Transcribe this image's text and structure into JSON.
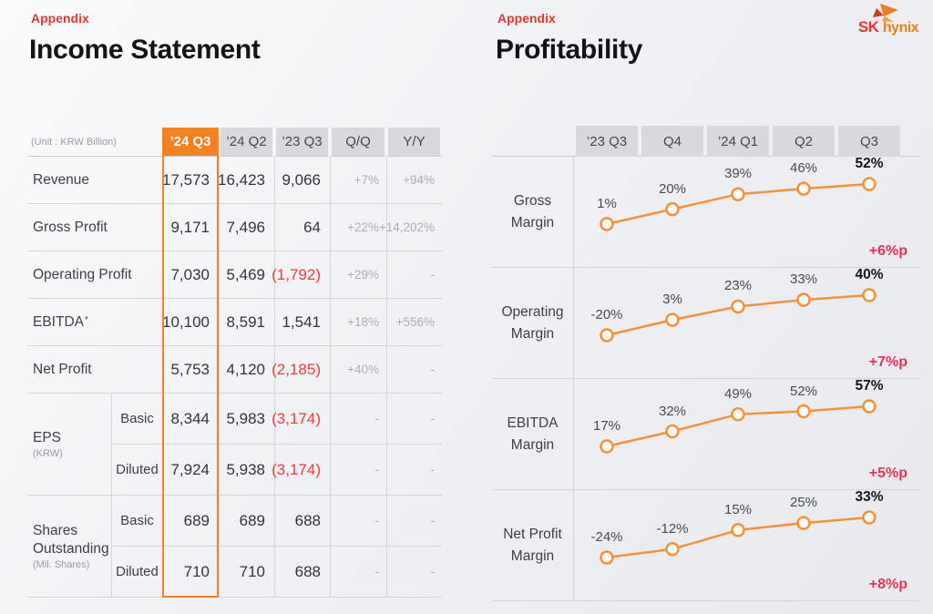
{
  "logo": {
    "sk": "SK",
    "hynix": "hynix",
    "red": "#e5352c",
    "orange": "#ef7f1d"
  },
  "left_panel": {
    "eyebrow": "Appendix",
    "title": "Income Statement",
    "table": {
      "unit_label": "(Unit : KRW Billion)",
      "highlight_color": "#f58220",
      "columns": [
        "’24 Q3",
        "’24 Q2",
        "’23 Q3",
        "Q/Q",
        "Y/Y"
      ],
      "rows": [
        {
          "label": "Revenue",
          "values": [
            "17,573",
            "16,423",
            "9,066",
            "+7%",
            "+94%"
          ]
        },
        {
          "label": "Gross Profit",
          "values": [
            "9,171",
            "7,496",
            "64",
            "+22%",
            "+14,202%"
          ]
        },
        {
          "label": "Operating Profit",
          "values": [
            "7,030",
            "5,469",
            "(1,792)",
            "+29%",
            "-"
          ]
        },
        {
          "label": "EBITDA",
          "footnote": "*",
          "values": [
            "10,100",
            "8,591",
            "1,541",
            "+18%",
            "+556%"
          ]
        },
        {
          "label": "Net Profit",
          "values": [
            "5,753",
            "4,120",
            "(2,185)",
            "+40%",
            "-"
          ]
        }
      ],
      "groups": [
        {
          "label": "EPS",
          "sublabel": "(KRW)",
          "rows": [
            {
              "sub": "Basic",
              "values": [
                "8,344",
                "5,983",
                "(3,174)",
                "-",
                "-"
              ]
            },
            {
              "sub": "Diluted",
              "values": [
                "7,924",
                "5,938",
                "(3,174)",
                "-",
                "-"
              ]
            }
          ]
        },
        {
          "label": "Shares Outstanding",
          "sublabel": "(Mil. Shares)",
          "rows": [
            {
              "sub": "Basic",
              "values": [
                "689",
                "689",
                "688",
                "-",
                "-"
              ]
            },
            {
              "sub": "Diluted",
              "values": [
                "710",
                "710",
                "688",
                "-",
                "-"
              ]
            }
          ]
        }
      ]
    }
  },
  "right_panel": {
    "eyebrow": "Appendix",
    "title": "Profitability",
    "columns": [
      "’23 Q3",
      "Q4",
      "’24 Q1",
      "Q2",
      "Q3"
    ],
    "line_color": "#f5913a",
    "delta_color": "#e73359"
  },
  "chart_data": [
    {
      "type": "table",
      "title": "Income Statement",
      "unit": "KRW Billion",
      "columns": [
        "’24 Q3",
        "’24 Q2",
        "’23 Q3",
        "Q/Q",
        "Y/Y"
      ],
      "rows": [
        [
          "Revenue",
          17573,
          16423,
          9066,
          "+7%",
          "+94%"
        ],
        [
          "Gross Profit",
          9171,
          7496,
          64,
          "+22%",
          "+14,202%"
        ],
        [
          "Operating Profit",
          7030,
          5469,
          -1792,
          "+29%",
          "-"
        ],
        [
          "EBITDA",
          10100,
          8591,
          1541,
          "+18%",
          "+556%"
        ],
        [
          "Net Profit",
          5753,
          4120,
          -2185,
          "+40%",
          "-"
        ],
        [
          "EPS Basic (KRW)",
          8344,
          5983,
          -3174,
          "-",
          "-"
        ],
        [
          "EPS Diluted (KRW)",
          7924,
          5938,
          -3174,
          "-",
          "-"
        ],
        [
          "Shares Outstanding Basic (Mil. Shares)",
          689,
          689,
          688,
          "-",
          "-"
        ],
        [
          "Shares Outstanding Diluted (Mil. Shares)",
          710,
          710,
          688,
          "-",
          "-"
        ]
      ]
    },
    {
      "type": "line",
      "title": "Gross Margin",
      "categories": [
        "’23 Q3",
        "Q4",
        "’24 Q1",
        "Q2",
        "Q3"
      ],
      "values": [
        1,
        20,
        39,
        46,
        52
      ],
      "unit": "%",
      "delta": "+6%p"
    },
    {
      "type": "line",
      "title": "Operating Margin",
      "categories": [
        "’23 Q3",
        "Q4",
        "’24 Q1",
        "Q2",
        "Q3"
      ],
      "values": [
        -20,
        3,
        23,
        33,
        40
      ],
      "unit": "%",
      "delta": "+7%p"
    },
    {
      "type": "line",
      "title": "EBITDA Margin",
      "categories": [
        "’23 Q3",
        "Q4",
        "’24 Q1",
        "Q2",
        "Q3"
      ],
      "values": [
        17,
        32,
        49,
        52,
        57
      ],
      "unit": "%",
      "delta": "+5%p"
    },
    {
      "type": "line",
      "title": "Net Profit Margin",
      "categories": [
        "’23 Q3",
        "Q4",
        "’24 Q1",
        "Q2",
        "Q3"
      ],
      "values": [
        -24,
        -12,
        15,
        25,
        33
      ],
      "unit": "%",
      "delta": "+8%p"
    }
  ]
}
